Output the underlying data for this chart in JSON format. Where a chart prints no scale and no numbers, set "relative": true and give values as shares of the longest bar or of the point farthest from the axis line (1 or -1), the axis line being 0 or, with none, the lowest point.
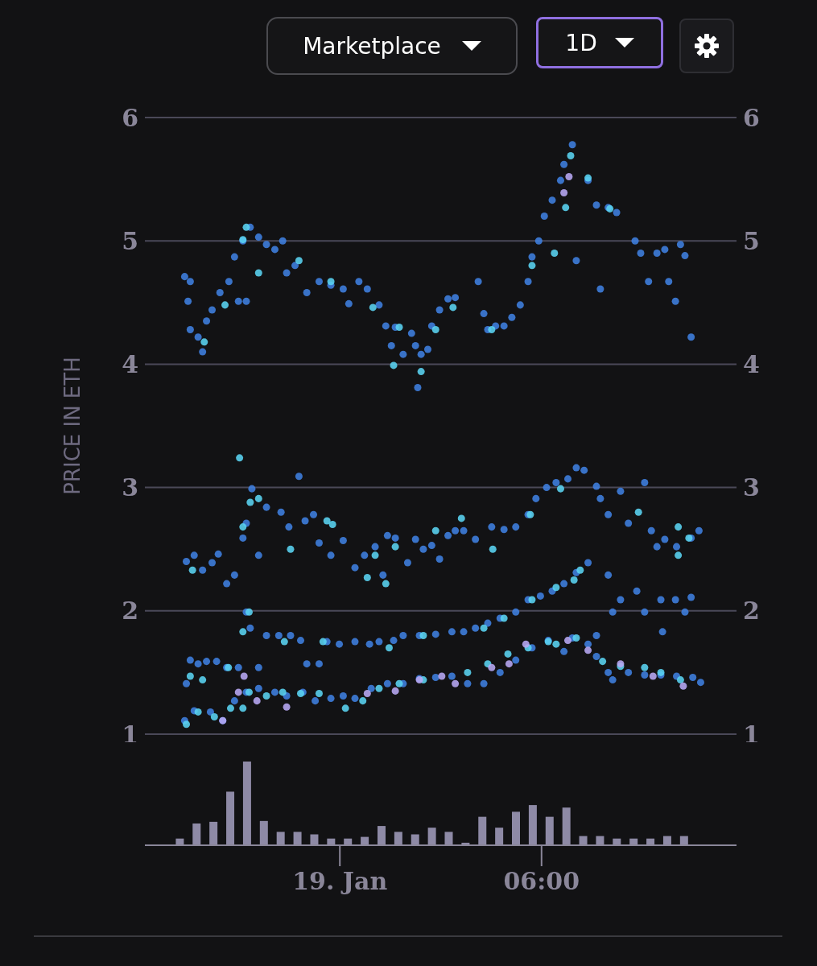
{
  "chart_data": [
    {
      "type": "scatter",
      "ylabel": "PRICE IN ETH",
      "annotations": [
        "Marketplace",
        "1D"
      ],
      "xlim": [
        "--01-18T18:12",
        "--01-19T11:48"
      ],
      "ylim": [
        1,
        6
      ],
      "yticks": [
        1,
        2,
        3,
        4,
        5,
        6
      ],
      "y2lim": [
        1,
        6
      ],
      "y2ticks": [
        1,
        2,
        3,
        4,
        5,
        6
      ],
      "tick_labels": "y",
      "grid": "y",
      "marker": "circle",
      "series": [
        {
          "color": "#3f7fe0",
          "x": [
            "--01-18T19:23",
            "--01-18T19:33",
            "--01-18T19:29",
            "--01-18T19:33",
            "--01-18T19:47",
            "--01-18T19:55",
            "--01-18T20:02",
            "--01-18T20:12",
            "--01-18T20:26",
            "--01-18T20:42",
            "--01-18T20:52",
            "--01-18T20:59",
            "--01-18T21:07",
            "--01-18T21:13",
            "--01-18T21:20",
            "--01-18T21:35",
            "--01-18T21:49",
            "--01-18T22:04",
            "--01-18T22:18",
            "--01-18T22:25",
            "--01-18T22:40",
            "--01-18T23:01",
            "--01-18T23:23",
            "--01-18T23:44",
            "--01-19T00:06",
            "--01-19T00:16",
            "--01-19T00:34",
            "--01-19T00:49",
            "--01-19T01:10",
            "--01-19T01:22",
            "--01-19T01:32",
            "--01-19T01:39",
            "--01-19T01:53",
            "--01-19T02:08",
            "--01-19T02:15",
            "--01-19T02:19",
            "--01-19T02:25",
            "--01-19T02:37",
            "--01-19T02:44",
            "--01-19T02:58",
            "--01-19T03:13",
            "--01-19T03:26",
            "--01-19T04:07",
            "--01-19T04:17",
            "--01-19T04:24",
            "--01-19T04:38",
            "--01-19T04:53",
            "--01-19T05:07",
            "--01-19T05:22",
            "--01-19T05:36",
            "--01-19T05:43",
            "--01-19T05:55",
            "--01-19T06:05",
            "--01-19T06:19",
            "--01-19T06:34",
            "--01-19T06:40",
            "--01-19T06:55",
            "--01-19T07:02",
            "--01-19T07:23",
            "--01-19T07:38",
            "--01-19T07:45",
            "--01-19T07:59",
            "--01-19T08:14",
            "--01-19T08:47",
            "--01-19T08:57",
            "--01-19T09:11",
            "--01-19T09:26",
            "--01-19T09:40",
            "--01-19T09:47",
            "--01-19T09:59",
            "--01-19T10:08",
            "--01-19T10:16",
            "--01-19T10:27",
            "--01-18T19:26",
            "--01-18T19:40",
            "--01-18T19:55",
            "--01-18T20:12",
            "--01-18T20:23",
            "--01-18T20:38",
            "--01-18T20:52",
            "--01-18T21:07",
            "--01-18T21:13",
            "--01-18T21:23",
            "--01-18T21:35",
            "--01-18T21:49",
            "--01-18T22:15",
            "--01-18T22:29",
            "--01-18T22:47",
            "--01-18T22:58",
            "--01-18T23:13",
            "--01-18T23:23",
            "--01-18T23:44",
            "--01-19T00:06",
            "--01-19T00:27",
            "--01-19T00:44",
            "--01-19T01:03",
            "--01-19T01:17",
            "--01-19T01:25",
            "--01-19T01:39",
            "--01-19T02:01",
            "--01-19T02:15",
            "--01-19T02:29",
            "--01-19T02:44",
            "--01-19T02:58",
            "--01-19T03:13",
            "--01-19T03:26",
            "--01-19T03:41",
            "--01-19T04:02",
            "--01-19T04:31",
            "--01-19T04:53",
            "--01-19T05:14",
            "--01-19T05:36",
            "--01-19T05:50",
            "--01-19T06:09",
            "--01-19T06:26",
            "--01-19T06:47",
            "--01-19T07:02",
            "--01-19T07:16",
            "--01-19T07:38",
            "--01-19T07:45",
            "--01-19T07:59",
            "--01-19T08:21",
            "--01-19T08:35",
            "--01-19T09:04",
            "--01-19T09:16",
            "--01-19T09:26",
            "--01-19T09:40",
            "--01-19T10:01",
            "--01-19T10:27",
            "--01-19T10:41",
            "--01-18T19:26",
            "--01-18T19:33",
            "--01-18T19:47",
            "--01-18T20:02",
            "--01-18T20:20",
            "--01-18T20:38",
            "--01-18T20:59",
            "--01-18T21:13",
            "--01-18T21:20",
            "--01-18T21:35",
            "--01-18T21:49",
            "--01-18T22:11",
            "--01-18T22:32",
            "--01-18T22:50",
            "--01-18T23:01",
            "--01-18T23:23",
            "--01-18T23:37",
            "--01-18T23:59",
            "--01-19T00:27",
            "--01-19T00:53",
            "--01-19T01:10",
            "--01-19T01:36",
            "--01-19T01:53",
            "--01-19T02:22",
            "--01-19T02:51",
            "--01-19T03:20",
            "--01-19T03:41",
            "--01-19T04:02",
            "--01-19T04:24",
            "--01-19T04:46",
            "--01-19T05:14",
            "--01-19T05:36",
            "--01-19T05:58",
            "--01-19T06:19",
            "--01-19T06:40",
            "--01-19T07:02",
            "--01-19T07:23",
            "--01-19T07:38",
            "--01-19T07:59",
            "--01-19T08:07",
            "--01-19T08:21",
            "--01-19T08:50",
            "--01-19T09:04",
            "--01-19T09:33",
            "--01-19T09:36",
            "--01-19T09:59",
            "--01-19T10:16",
            "--01-19T10:27",
            "--01-18T19:23",
            "--01-18T19:40",
            "--01-18T20:09",
            "--01-18T20:31",
            "--01-18T20:52",
            "--01-18T21:13",
            "--01-18T21:35",
            "--01-18T22:04",
            "--01-18T22:25",
            "--01-18T22:54",
            "--01-18T23:16",
            "--01-18T23:44",
            "--01-19T00:06",
            "--01-19T00:27",
            "--01-19T00:56",
            "--01-19T01:25",
            "--01-19T01:53",
            "--01-19T02:22",
            "--01-19T02:51",
            "--01-19T03:20",
            "--01-19T03:48",
            "--01-19T04:17",
            "--01-19T04:46",
            "--01-19T05:14",
            "--01-19T05:43",
            "--01-19T06:12",
            "--01-19T06:40",
            "--01-19T06:55",
            "--01-19T07:23",
            "--01-19T07:38",
            "--01-19T07:59",
            "--01-19T08:07",
            "--01-19T08:35",
            "--01-19T09:04",
            "--01-19T09:33",
            "--01-19T10:01",
            "--01-19T10:30",
            "--01-19T10:44"
          ],
          "values": [
            4.71,
            4.67,
            4.51,
            4.28,
            4.22,
            4.1,
            4.35,
            4.44,
            4.58,
            4.67,
            4.87,
            4.51,
            5.0,
            4.51,
            5.11,
            5.03,
            4.97,
            4.93,
            5.0,
            4.74,
            4.8,
            4.58,
            4.67,
            4.64,
            4.61,
            4.49,
            4.67,
            4.61,
            4.48,
            4.31,
            4.15,
            4.3,
            4.08,
            4.25,
            4.15,
            3.81,
            4.08,
            4.12,
            4.31,
            4.44,
            4.53,
            4.54,
            4.67,
            4.41,
            4.28,
            4.31,
            4.31,
            4.38,
            4.48,
            4.67,
            4.87,
            5.0,
            5.2,
            5.33,
            5.49,
            5.62,
            5.78,
            4.84,
            5.49,
            5.29,
            4.61,
            5.27,
            5.23,
            5.0,
            4.9,
            4.67,
            4.9,
            4.93,
            4.67,
            4.51,
            4.97,
            4.88,
            4.22,
            2.4,
            2.45,
            2.33,
            2.39,
            2.46,
            2.22,
            2.29,
            2.59,
            2.71,
            2.99,
            2.45,
            2.84,
            2.8,
            2.68,
            3.09,
            2.73,
            2.78,
            2.55,
            2.45,
            2.57,
            2.35,
            2.45,
            2.52,
            2.29,
            2.61,
            2.59,
            2.39,
            2.58,
            2.5,
            2.53,
            2.42,
            2.61,
            2.65,
            2.65,
            2.58,
            2.68,
            2.66,
            2.68,
            2.78,
            2.91,
            3.0,
            3.04,
            3.07,
            3.16,
            3.14,
            3.01,
            2.91,
            2.78,
            2.97,
            2.71,
            3.04,
            2.65,
            2.52,
            2.58,
            2.52,
            2.59,
            2.65,
            1.41,
            1.6,
            1.57,
            1.59,
            1.59,
            1.54,
            1.54,
            1.99,
            1.86,
            1.54,
            1.8,
            1.8,
            1.8,
            1.76,
            1.57,
            1.57,
            1.75,
            1.73,
            1.75,
            1.73,
            1.75,
            1.76,
            1.8,
            1.8,
            1.81,
            1.83,
            1.83,
            1.86,
            1.9,
            1.94,
            1.99,
            2.09,
            2.12,
            2.16,
            2.22,
            2.31,
            2.39,
            1.8,
            2.29,
            1.99,
            2.09,
            2.16,
            1.99,
            2.09,
            1.83,
            2.09,
            1.99,
            2.11,
            1.11,
            1.19,
            1.18,
            1.11,
            1.27,
            1.34,
            1.37,
            1.34,
            1.31,
            1.34,
            1.27,
            1.29,
            1.31,
            1.29,
            1.37,
            1.41,
            1.41,
            1.45,
            1.46,
            1.47,
            1.41,
            1.41,
            1.5,
            1.6,
            1.7,
            1.76,
            1.67,
            1.78,
            1.73,
            1.63,
            1.5,
            1.44,
            1.5,
            1.48,
            1.48,
            1.47,
            1.46,
            1.42
          ]
        },
        {
          "color": "#5ad4f2",
          "x": [
            "--01-18T19:58",
            "--01-18T20:35",
            "--01-18T21:07",
            "--01-18T21:13",
            "--01-18T21:35",
            "--01-18T22:47",
            "--01-18T23:44",
            "--01-19T00:59",
            "--01-19T01:36",
            "--01-19T01:46",
            "--01-19T02:25",
            "--01-19T02:51",
            "--01-19T03:22",
            "--01-19T04:31",
            "--01-19T05:43",
            "--01-19T06:23",
            "--01-19T06:43",
            "--01-19T06:52",
            "--01-19T07:23",
            "--01-19T08:02",
            "--01-18T19:37",
            "--01-18T21:01",
            "--01-18T21:07",
            "--01-18T21:20",
            "--01-18T21:35",
            "--01-18T22:32",
            "--01-18T23:37",
            "--01-18T23:47",
            "--01-19T00:49",
            "--01-19T01:03",
            "--01-19T01:22",
            "--01-19T01:39",
            "--01-19T02:51",
            "--01-19T03:37",
            "--01-19T04:33",
            "--01-19T05:40",
            "--01-19T06:34",
            "--01-19T08:53",
            "--01-19T10:04",
            "--01-19T10:04",
            "--01-19T10:23",
            "--01-18T19:33",
            "--01-18T19:55",
            "--01-18T20:41",
            "--01-18T21:07",
            "--01-18T21:18",
            "--01-18T22:21",
            "--01-18T23:30",
            "--01-19T01:28",
            "--01-19T02:29",
            "--01-19T04:17",
            "--01-19T04:53",
            "--01-19T05:43",
            "--01-19T06:26",
            "--01-19T06:58",
            "--01-19T07:09",
            "--01-18T19:26",
            "--01-18T19:47",
            "--01-18T20:16",
            "--01-18T20:45",
            "--01-18T21:07",
            "--01-18T21:18",
            "--01-18T21:49",
            "--01-18T22:18",
            "--01-18T22:50",
            "--01-18T23:23",
            "--01-19T00:10",
            "--01-19T00:41",
            "--01-19T01:10",
            "--01-19T01:46",
            "--01-19T02:29",
            "--01-19T03:48",
            "--01-19T04:24",
            "--01-19T05:00",
            "--01-19T05:36",
            "--01-19T06:12",
            "--01-19T06:26",
            "--01-19T07:02",
            "--01-19T07:49",
            "--01-19T08:21",
            "--01-19T09:04",
            "--01-19T09:33",
            "--01-19T10:08"
          ],
          "values": [
            4.18,
            4.48,
            5.01,
            5.11,
            4.74,
            4.84,
            4.67,
            4.46,
            3.99,
            4.3,
            3.94,
            4.28,
            4.46,
            4.28,
            4.8,
            4.9,
            5.27,
            5.69,
            5.51,
            5.26,
            2.33,
            3.24,
            2.68,
            2.88,
            2.91,
            2.5,
            2.73,
            2.7,
            2.27,
            2.45,
            2.22,
            2.52,
            2.65,
            2.75,
            2.5,
            2.78,
            2.99,
            2.8,
            2.68,
            2.45,
            2.59,
            1.47,
            1.44,
            1.54,
            1.83,
            1.99,
            1.75,
            1.75,
            1.7,
            1.8,
            1.86,
            1.94,
            2.09,
            2.19,
            2.25,
            2.33,
            1.08,
            1.18,
            1.14,
            1.21,
            1.21,
            1.34,
            1.31,
            1.34,
            1.33,
            1.33,
            1.21,
            1.27,
            1.37,
            1.41,
            1.44,
            1.5,
            1.57,
            1.65,
            1.7,
            1.75,
            1.73,
            1.78,
            1.59,
            1.55,
            1.54,
            1.5,
            1.44
          ]
        },
        {
          "color": "#b8a9f5",
          "x": [
            "--01-19T06:49",
            "--01-19T06:40",
            "--01-18T20:31",
            "--01-18T20:59",
            "--01-18T21:09",
            "--01-18T21:32",
            "--01-18T22:25",
            "--01-19T00:49",
            "--01-19T01:39",
            "--01-19T02:22",
            "--01-19T03:02",
            "--01-19T03:26",
            "--01-19T04:31",
            "--01-19T05:02",
            "--01-19T05:32",
            "--01-19T06:47",
            "--01-19T07:23",
            "--01-19T08:21",
            "--01-19T09:19",
            "--01-19T10:13"
          ],
          "values": [
            5.52,
            5.39,
            1.11,
            1.34,
            1.47,
            1.27,
            1.22,
            1.33,
            1.35,
            1.44,
            1.47,
            1.41,
            1.54,
            1.57,
            1.73,
            1.76,
            1.68,
            1.57,
            1.47,
            1.39
          ]
        }
      ]
    },
    {
      "type": "bar",
      "relative": true,
      "color": "#8e8aa6",
      "xlim": [
        "--01-18T18:12",
        "--01-19T11:48"
      ],
      "xticks": [
        {
          "value": "--01-19",
          "label": "19. Jan"
        },
        {
          "value": "--01-19T06:00",
          "label": "06:00"
        }
      ],
      "tick_labels": "x",
      "x": [
        "--01-18T19:15",
        "--01-18T19:45",
        "--01-18T20:15",
        "--01-18T20:45",
        "--01-18T21:15",
        "--01-18T21:45",
        "--01-18T22:15",
        "--01-18T22:45",
        "--01-18T23:15",
        "--01-18T23:45",
        "--01-19T00:15",
        "--01-19T00:45",
        "--01-19T01:15",
        "--01-19T01:45",
        "--01-19T02:15",
        "--01-19T02:45",
        "--01-19T03:15",
        "--01-19T03:45",
        "--01-19T04:15",
        "--01-19T04:45",
        "--01-19T05:15",
        "--01-19T05:45",
        "--01-19T06:15",
        "--01-19T06:45",
        "--01-19T07:15",
        "--01-19T07:45",
        "--01-19T08:15",
        "--01-19T08:45",
        "--01-19T09:15",
        "--01-19T09:45",
        "--01-19T10:15"
      ],
      "values": [
        0.08,
        0.26,
        0.28,
        0.64,
        1,
        0.29,
        0.16,
        0.16,
        0.13,
        0.08,
        0.08,
        0.1,
        0.23,
        0.16,
        0.13,
        0.21,
        0.16,
        0.03,
        0.34,
        0.21,
        0.4,
        0.48,
        0.34,
        0.45,
        0.11,
        0.11,
        0.08,
        0.08,
        0.08,
        0.11,
        0.11
      ]
    }
  ]
}
